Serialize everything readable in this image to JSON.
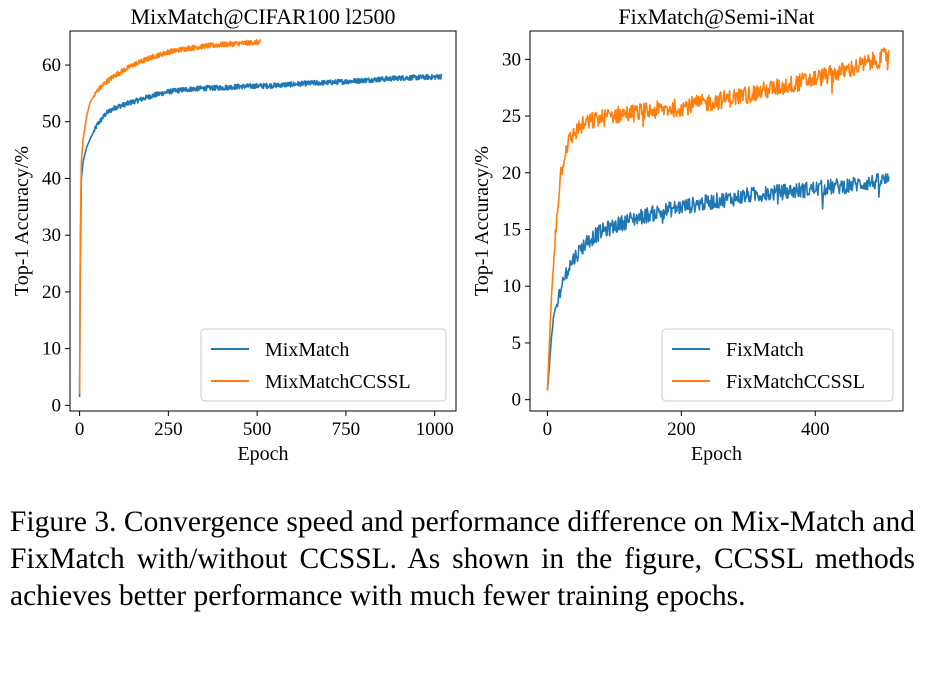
{
  "figure": {
    "caption": "Figure 3. Convergence speed and performance difference on Mix-Match and FixMatch with/without CCSSL. As shown in the figure, CCSSL methods achieves better performance with much fewer training epochs."
  },
  "colors": {
    "blue": "#1f77b4",
    "orange": "#ff7f0e"
  },
  "chart_data": [
    {
      "type": "line",
      "title": "MixMatch@CIFAR100 l2500",
      "xlabel": "Epoch",
      "ylabel": "Top-1 Accuracy/%",
      "xlim": [
        -27,
        1060
      ],
      "ylim": [
        -1,
        66
      ],
      "xticks": [
        0,
        250,
        500,
        750,
        1000
      ],
      "yticks": [
        0,
        10,
        20,
        30,
        40,
        50,
        60
      ],
      "grid": false,
      "legend_position": "lower right",
      "series": [
        {
          "name": "MixMatch",
          "color": "#1f77b4",
          "x": [
            0,
            2,
            5,
            10,
            20,
            30,
            50,
            75,
            100,
            150,
            200,
            250,
            300,
            350,
            400,
            450,
            500,
            550,
            600,
            650,
            700,
            750,
            800,
            850,
            900,
            950,
            1000,
            1020
          ],
          "y": [
            1.5,
            25,
            40,
            43,
            45.5,
            47,
            49.5,
            51.5,
            52.5,
            53.5,
            54.5,
            55.3,
            55.7,
            55.9,
            56,
            56.2,
            56.3,
            56.4,
            56.6,
            56.8,
            56.9,
            57.1,
            57.3,
            57.5,
            57.7,
            57.8,
            57.9,
            58
          ]
        },
        {
          "name": "MixMatchCCSSL",
          "color": "#ff7f0e",
          "x": [
            0,
            2,
            5,
            10,
            20,
            30,
            50,
            75,
            100,
            150,
            200,
            250,
            300,
            350,
            400,
            450,
            500,
            510
          ],
          "y": [
            2,
            30,
            43,
            47,
            51,
            53.5,
            55.5,
            57,
            58.2,
            60,
            61.3,
            62.3,
            62.9,
            63.3,
            63.6,
            63.8,
            64,
            64
          ]
        }
      ]
    },
    {
      "type": "line",
      "title": "FixMatch@Semi-iNat",
      "xlabel": "Epoch",
      "ylabel": "Top-1 Accuracy/%",
      "xlim": [
        -26,
        531
      ],
      "ylim": [
        -1,
        32.5
      ],
      "xticks": [
        0,
        200,
        400
      ],
      "yticks": [
        0,
        5,
        10,
        15,
        20,
        25,
        30
      ],
      "grid": false,
      "legend_position": "lower right",
      "series": [
        {
          "name": "FixMatch",
          "color": "#1f77b4",
          "x": [
            0,
            3,
            6,
            10,
            15,
            20,
            30,
            40,
            50,
            60,
            80,
            100,
            120,
            150,
            200,
            250,
            300,
            350,
            400,
            450,
            490,
            500,
            510
          ],
          "y": [
            0.8,
            3,
            5.5,
            7.5,
            8.5,
            10,
            11.5,
            12.5,
            13.3,
            14,
            14.8,
            15.3,
            15.8,
            16.3,
            17,
            17.5,
            18,
            18.3,
            18.6,
            18.9,
            19.2,
            19.3,
            19.4
          ],
          "noise": 0.7
        },
        {
          "name": "FixMatchCCSSL",
          "color": "#ff7f0e",
          "x": [
            0,
            3,
            6,
            10,
            15,
            20,
            25,
            30,
            40,
            50,
            60,
            80,
            100,
            150,
            200,
            250,
            300,
            350,
            400,
            450,
            500,
            510
          ],
          "y": [
            0.8,
            5,
            9,
            13,
            17,
            20,
            21.5,
            22.5,
            23.5,
            24.1,
            24.4,
            24.8,
            25.1,
            25.4,
            25.8,
            26.3,
            26.9,
            27.6,
            28.3,
            29.1,
            30.1,
            30.6
          ],
          "noise": 0.8
        }
      ]
    }
  ]
}
